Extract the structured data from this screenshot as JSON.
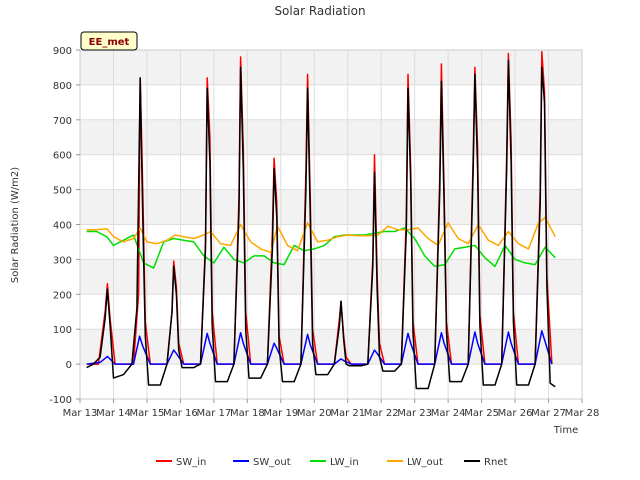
{
  "chart_data": {
    "type": "line",
    "title": "Solar Radiation",
    "xlabel": "Time",
    "ylabel": "Solar Radiation (W/m2)",
    "badge": "EE_met",
    "ylim": [
      -100,
      900
    ],
    "xlim": [
      13,
      28
    ],
    "yticks": [
      -100,
      0,
      100,
      200,
      300,
      400,
      500,
      600,
      700,
      800,
      900
    ],
    "xticks": [
      13,
      14,
      15,
      16,
      17,
      18,
      19,
      20,
      21,
      22,
      23,
      24,
      25,
      26,
      27,
      28
    ],
    "xtick_labels": [
      "Mar 13",
      "Mar 14",
      "Mar 15",
      "Mar 16",
      "Mar 17",
      "Mar 18",
      "Mar 19",
      "Mar 20",
      "Mar 21",
      "Mar 22",
      "Mar 23",
      "Mar 24",
      "Mar 25",
      "Mar 26",
      "Mar 27",
      "Mar 28"
    ],
    "grid": true,
    "legend_position": "bottom",
    "series": [
      {
        "name": "SW_in",
        "color": "#ff0000",
        "x": [
          13.2,
          13.55,
          13.75,
          13.82,
          13.9,
          14.05,
          14.6,
          14.75,
          14.8,
          14.88,
          14.95,
          15.1,
          15.6,
          15.75,
          15.8,
          15.88,
          15.95,
          16.1,
          16.6,
          16.75,
          16.8,
          16.88,
          16.95,
          17.1,
          17.6,
          17.75,
          17.8,
          17.88,
          17.95,
          18.1,
          18.6,
          18.75,
          18.8,
          18.88,
          18.95,
          19.1,
          19.6,
          19.75,
          19.8,
          19.88,
          19.95,
          20.1,
          20.6,
          20.75,
          20.8,
          20.88,
          20.95,
          21.1,
          21.6,
          21.75,
          21.8,
          21.88,
          21.95,
          22.1,
          22.6,
          22.75,
          22.8,
          22.88,
          22.95,
          23.1,
          23.6,
          23.75,
          23.8,
          23.88,
          23.95,
          24.1,
          24.6,
          24.75,
          24.8,
          24.88,
          24.95,
          25.1,
          25.6,
          25.75,
          25.8,
          25.88,
          25.95,
          26.1,
          26.6,
          26.75,
          26.8,
          26.88,
          26.95,
          27.1
        ],
        "y": [
          0,
          0,
          150,
          230,
          130,
          0,
          0,
          200,
          820,
          480,
          120,
          0,
          0,
          150,
          295,
          220,
          60,
          0,
          0,
          350,
          820,
          650,
          150,
          0,
          0,
          480,
          880,
          620,
          150,
          0,
          0,
          380,
          590,
          460,
          80,
          0,
          0,
          550,
          830,
          470,
          100,
          0,
          0,
          130,
          180,
          80,
          20,
          0,
          0,
          300,
          600,
          250,
          60,
          0,
          0,
          420,
          830,
          560,
          120,
          0,
          0,
          540,
          860,
          500,
          120,
          0,
          0,
          600,
          850,
          620,
          140,
          0,
          0,
          600,
          890,
          640,
          150,
          0,
          0,
          500,
          895,
          780,
          250,
          0
        ]
      },
      {
        "name": "SW_out",
        "color": "#0000ff",
        "x": [
          13.2,
          13.6,
          13.82,
          14.05,
          14.6,
          14.78,
          14.88,
          15.1,
          15.6,
          15.8,
          15.88,
          16.1,
          16.6,
          16.8,
          16.88,
          17.1,
          17.6,
          17.8,
          17.88,
          18.1,
          18.6,
          18.8,
          18.88,
          19.1,
          19.6,
          19.8,
          19.88,
          20.1,
          20.6,
          20.8,
          20.88,
          21.1,
          21.6,
          21.8,
          21.88,
          22.1,
          22.6,
          22.8,
          22.88,
          23.1,
          23.6,
          23.8,
          23.88,
          24.1,
          24.6,
          24.8,
          24.88,
          25.1,
          25.6,
          25.8,
          25.88,
          26.1,
          26.6,
          26.8,
          26.88,
          27.1
        ],
        "y": [
          0,
          5,
          22,
          0,
          0,
          80,
          50,
          0,
          0,
          40,
          30,
          0,
          0,
          88,
          60,
          0,
          0,
          90,
          60,
          0,
          0,
          60,
          45,
          0,
          0,
          85,
          55,
          0,
          0,
          15,
          10,
          0,
          0,
          40,
          30,
          0,
          0,
          88,
          60,
          0,
          0,
          90,
          60,
          0,
          0,
          92,
          60,
          0,
          0,
          92,
          60,
          0,
          0,
          95,
          70,
          0
        ]
      },
      {
        "name": "LW_in",
        "color": "#00dd00",
        "x": [
          13.2,
          13.5,
          13.8,
          14.0,
          14.3,
          14.6,
          14.9,
          15.2,
          15.5,
          15.8,
          16.1,
          16.4,
          16.7,
          17.0,
          17.3,
          17.6,
          17.9,
          18.2,
          18.5,
          18.8,
          19.1,
          19.4,
          19.7,
          20.0,
          20.3,
          20.6,
          20.9,
          21.2,
          21.5,
          21.8,
          22.1,
          22.4,
          22.7,
          23.0,
          23.3,
          23.6,
          23.9,
          24.2,
          24.5,
          24.8,
          25.1,
          25.4,
          25.7,
          26.0,
          26.3,
          26.6,
          26.9,
          27.2
        ],
        "y": [
          380,
          380,
          365,
          340,
          355,
          370,
          290,
          275,
          350,
          360,
          355,
          350,
          310,
          290,
          335,
          300,
          290,
          310,
          310,
          290,
          285,
          340,
          325,
          330,
          340,
          365,
          370,
          370,
          370,
          375,
          380,
          380,
          390,
          360,
          310,
          280,
          285,
          330,
          335,
          340,
          305,
          280,
          340,
          300,
          290,
          285,
          335,
          305
        ]
      },
      {
        "name": "LW_out",
        "color": "#ffa500",
        "x": [
          13.2,
          13.5,
          13.8,
          14.0,
          14.3,
          14.6,
          14.8,
          15.0,
          15.3,
          15.6,
          15.85,
          16.1,
          16.4,
          16.7,
          16.9,
          17.2,
          17.5,
          17.8,
          18.1,
          18.4,
          18.7,
          18.9,
          19.2,
          19.5,
          19.8,
          20.1,
          20.4,
          20.7,
          21.0,
          21.3,
          21.6,
          21.9,
          22.2,
          22.5,
          22.8,
          23.1,
          23.4,
          23.7,
          24.0,
          24.3,
          24.6,
          24.9,
          25.2,
          25.5,
          25.8,
          26.1,
          26.4,
          26.7,
          26.9,
          27.2
        ],
        "y": [
          385,
          385,
          388,
          365,
          350,
          360,
          390,
          350,
          345,
          355,
          370,
          365,
          360,
          370,
          380,
          345,
          340,
          400,
          350,
          330,
          320,
          395,
          340,
          325,
          405,
          350,
          355,
          365,
          370,
          368,
          368,
          370,
          395,
          385,
          385,
          390,
          360,
          340,
          405,
          360,
          345,
          400,
          355,
          340,
          380,
          345,
          330,
          405,
          420,
          365
        ]
      },
      {
        "name": "Rnet",
        "color": "#000000",
        "x": [
          13.2,
          13.4,
          13.6,
          13.75,
          13.82,
          13.9,
          14.0,
          14.3,
          14.55,
          14.7,
          14.8,
          14.88,
          14.95,
          15.05,
          15.4,
          15.6,
          15.75,
          15.8,
          15.88,
          15.95,
          16.05,
          16.4,
          16.6,
          16.75,
          16.8,
          16.88,
          16.95,
          17.05,
          17.4,
          17.6,
          17.75,
          17.8,
          17.88,
          17.95,
          18.05,
          18.4,
          18.6,
          18.75,
          18.8,
          18.88,
          18.95,
          19.05,
          19.4,
          19.6,
          19.75,
          19.8,
          19.88,
          19.95,
          20.05,
          20.4,
          20.6,
          20.75,
          20.8,
          20.88,
          20.95,
          21.05,
          21.4,
          21.6,
          21.75,
          21.8,
          21.88,
          21.95,
          22.05,
          22.4,
          22.6,
          22.75,
          22.8,
          22.88,
          22.95,
          23.05,
          23.4,
          23.6,
          23.75,
          23.8,
          23.88,
          23.95,
          24.05,
          24.4,
          24.6,
          24.75,
          24.8,
          24.88,
          24.95,
          25.05,
          25.4,
          25.6,
          25.75,
          25.8,
          25.88,
          25.95,
          26.05,
          26.4,
          26.6,
          26.75,
          26.8,
          26.88,
          26.95,
          27.05,
          27.2
        ],
        "y": [
          -10,
          0,
          20,
          130,
          215,
          110,
          -40,
          -30,
          0,
          160,
          820,
          400,
          80,
          -60,
          -60,
          0,
          150,
          280,
          200,
          40,
          -10,
          -10,
          0,
          330,
          790,
          580,
          110,
          -50,
          -50,
          0,
          440,
          850,
          560,
          100,
          -40,
          -40,
          0,
          330,
          560,
          420,
          50,
          -50,
          -50,
          0,
          500,
          790,
          420,
          60,
          -30,
          -30,
          0,
          110,
          180,
          70,
          0,
          -5,
          -5,
          0,
          280,
          550,
          210,
          20,
          -20,
          -20,
          0,
          380,
          790,
          520,
          90,
          -70,
          -70,
          0,
          500,
          810,
          460,
          90,
          -50,
          -50,
          0,
          560,
          830,
          560,
          110,
          -60,
          -60,
          0,
          560,
          870,
          580,
          120,
          -60,
          -60,
          0,
          460,
          850,
          750,
          220,
          -55,
          -65
        ]
      }
    ]
  }
}
